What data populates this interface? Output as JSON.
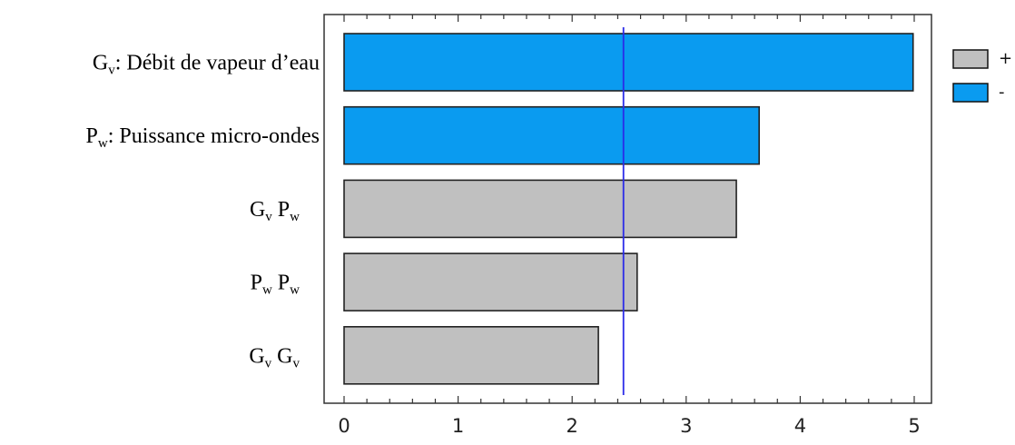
{
  "chart_data": {
    "type": "bar",
    "orientation": "horizontal",
    "title": "",
    "xlabel": "",
    "ylabel": "",
    "xlim": [
      0,
      5.2
    ],
    "xticks": [
      "0",
      "1",
      "2",
      "3",
      "4",
      "5"
    ],
    "categories": [
      {
        "main": "G",
        "sub": "v",
        "rest": ": Débit de vapeur d’eau"
      },
      {
        "main": "P",
        "sub": "w",
        "rest": ": Puissance micro-ondes"
      },
      {
        "main": "G",
        "sub": "v",
        "main2": " P",
        "sub2": "w"
      },
      {
        "main": "P",
        "sub": "w",
        "main2": " P",
        "sub2": "w"
      },
      {
        "main": "G",
        "sub": "v",
        "main2": " G",
        "sub2": "v"
      }
    ],
    "values": [
      4.99,
      3.64,
      3.44,
      2.57,
      2.23
    ],
    "signs": [
      "-",
      "-",
      "+",
      "+",
      "+"
    ],
    "reference_line": 2.45,
    "legend": {
      "position": "right",
      "items": [
        {
          "label": "+",
          "color": "#c0c0c0"
        },
        {
          "label": "-",
          "color": "#0a9bf0"
        }
      ]
    },
    "colors": {
      "positive": "#c0c0c0",
      "negative": "#0a9bf0",
      "reference_line": "#2a2ae8",
      "bar_outline": "#222222"
    }
  }
}
